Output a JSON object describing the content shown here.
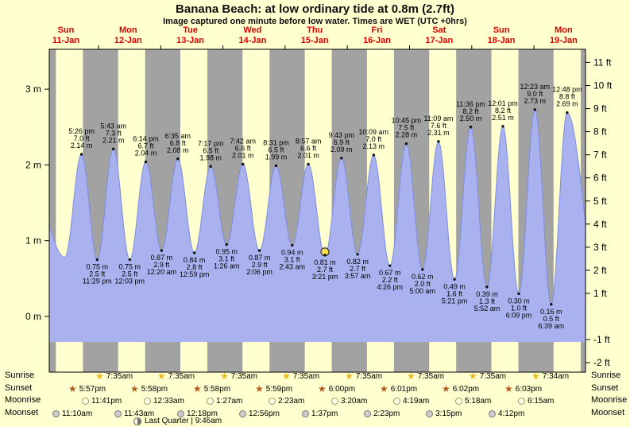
{
  "page": {
    "title": "Banana Beach: at low  ordinary tide at 0.8m (2.7ft)",
    "subtitle": "Image captured one minute before low water. Times are WET (UTC +0hrs)"
  },
  "colors": {
    "background": "#ffffcf",
    "day_band": "#ffffcf",
    "night_band": "#a2a2a2",
    "tide_fill": "#a9b2ef",
    "tide_stroke": "#7d8ce4",
    "day_label": "#dd0000",
    "current_marker": "#ffe14d",
    "sunrise_star": "#e8b81f",
    "sunset_star": "#b35a1f",
    "moonrise_fill": "#ffffe9",
    "moonrise_border": "#9a9a66",
    "moonset_fill": "#cccccc",
    "moonset_border": "#7a7a7a"
  },
  "chart_data": {
    "type": "area",
    "title": "Banana Beach: at low  ordinary tide at 0.8m (2.7ft)",
    "subtitle": "Image captured one minute before low water. Times are WET (UTC +0hrs)",
    "ylim_m": [
      -0.75,
      3.55
    ],
    "yticks_m": [
      0,
      1,
      2,
      3
    ],
    "ytick_suffix_left": " m",
    "yticks_ft": [
      -2,
      -1,
      1,
      2,
      3,
      4,
      5,
      6,
      7,
      8,
      9,
      10,
      11
    ],
    "ytick_suffix_right": " ft",
    "days": [
      {
        "name": "Sun",
        "date": "11-Jan"
      },
      {
        "name": "Mon",
        "date": "12-Jan"
      },
      {
        "name": "Tue",
        "date": "13-Jan"
      },
      {
        "name": "Wed",
        "date": "14-Jan"
      },
      {
        "name": "Thu",
        "date": "15-Jan"
      },
      {
        "name": "Fri",
        "date": "16-Jan"
      },
      {
        "name": "Sat",
        "date": "17-Jan"
      },
      {
        "name": "Sun",
        "date": "18-Jan"
      },
      {
        "name": "Mon",
        "date": "19-Jan"
      }
    ],
    "tides": [
      {
        "type": "high",
        "t": 17.43,
        "m": 2.14,
        "m_label": "2.14 m",
        "ft_label": "7.0 ft",
        "time": "5:26 pm"
      },
      {
        "type": "low",
        "t": 23.48,
        "m": 0.75,
        "m_label": "0.75 m",
        "ft_label": "2.5 ft",
        "time": "11:29 pm"
      },
      {
        "type": "high",
        "t": 29.72,
        "m": 2.21,
        "m_label": "2.21 m",
        "ft_label": "7.3 ft",
        "time": "5:43 am"
      },
      {
        "type": "low",
        "t": 36.05,
        "m": 0.75,
        "m_label": "0.75 m",
        "ft_label": "2.5 ft",
        "time": "12:03 pm"
      },
      {
        "type": "high",
        "t": 42.23,
        "m": 2.04,
        "m_label": "2.04 m",
        "ft_label": "6.7 ft",
        "time": "6:14 pm"
      },
      {
        "type": "low",
        "t": 48.33,
        "m": 0.87,
        "m_label": "0.87 m",
        "ft_label": "2.9 ft",
        "time": "12:20 am"
      },
      {
        "type": "high",
        "t": 54.58,
        "m": 2.08,
        "m_label": "2.08 m",
        "ft_label": "6.8 ft",
        "time": "6:35 am"
      },
      {
        "type": "low",
        "t": 60.98,
        "m": 0.84,
        "m_label": "0.84 m",
        "ft_label": "2.8 ft",
        "time": "12:59 pm"
      },
      {
        "type": "high",
        "t": 67.28,
        "m": 1.98,
        "m_label": "1.98 m",
        "ft_label": "6.5 ft",
        "time": "7:17 pm"
      },
      {
        "type": "low",
        "t": 73.43,
        "m": 0.95,
        "m_label": "0.95 m",
        "ft_label": "3.1 ft",
        "time": "1:26 am"
      },
      {
        "type": "high",
        "t": 79.7,
        "m": 2.01,
        "m_label": "2.01 m",
        "ft_label": "6.6 ft",
        "time": "7:42 am"
      },
      {
        "type": "low",
        "t": 86.1,
        "m": 0.87,
        "m_label": "0.87 m",
        "ft_label": "2.9 ft",
        "time": "2:06 pm"
      },
      {
        "type": "high",
        "t": 92.52,
        "m": 1.99,
        "m_label": "1.99 m",
        "ft_label": "6.5 ft",
        "time": "8:31 pm"
      },
      {
        "type": "low",
        "t": 98.72,
        "m": 0.94,
        "m_label": "0.94 m",
        "ft_label": "3.1 ft",
        "time": "2:43 am"
      },
      {
        "type": "high",
        "t": 104.95,
        "m": 2.01,
        "m_label": "2.01 m",
        "ft_label": "6.6 ft",
        "time": "8:57 am"
      },
      {
        "type": "low",
        "t": 111.35,
        "m": 0.81,
        "m_label": "0.81 m",
        "ft_label": "2.7 ft",
        "time": "3:21 pm",
        "current": true
      },
      {
        "type": "high",
        "t": 117.72,
        "m": 2.09,
        "m_label": "2.09 m",
        "ft_label": "6.9 ft",
        "time": "9:43 pm"
      },
      {
        "type": "low",
        "t": 123.95,
        "m": 0.82,
        "m_label": "0.82 m",
        "ft_label": "2.7 ft",
        "time": "3:57 am"
      },
      {
        "type": "high",
        "t": 130.15,
        "m": 2.13,
        "m_label": "2.13 m",
        "ft_label": "7.0 ft",
        "time": "10:09 am"
      },
      {
        "type": "low",
        "t": 136.43,
        "m": 0.67,
        "m_label": "0.67 m",
        "ft_label": "2.2 ft",
        "time": "4:26 pm"
      },
      {
        "type": "high",
        "t": 142.75,
        "m": 2.28,
        "m_label": "2.28 m",
        "ft_label": "7.5 ft",
        "time": "10:45 pm"
      },
      {
        "type": "low",
        "t": 149.0,
        "m": 0.62,
        "m_label": "0.62 m",
        "ft_label": "2.0 ft",
        "time": "5:00 am"
      },
      {
        "type": "high",
        "t": 155.15,
        "m": 2.31,
        "m_label": "2.31 m",
        "ft_label": "7.6 ft",
        "time": "11:09 am"
      },
      {
        "type": "low",
        "t": 161.35,
        "m": 0.49,
        "m_label": "0.49 m",
        "ft_label": "1.6 ft",
        "time": "5:21 pm"
      },
      {
        "type": "high",
        "t": 167.6,
        "m": 2.5,
        "m_label": "2.50 m",
        "ft_label": "8.2 ft",
        "time": "11:36 pm"
      },
      {
        "type": "low",
        "t": 173.87,
        "m": 0.39,
        "m_label": "0.39 m",
        "ft_label": "1.3 ft",
        "time": "5:52 am"
      },
      {
        "type": "high",
        "t": 180.02,
        "m": 2.51,
        "m_label": "2.51 m",
        "ft_label": "8.2 ft",
        "time": "12:01 pm"
      },
      {
        "type": "low",
        "t": 186.15,
        "m": 0.3,
        "m_label": "0.30 m",
        "ft_label": "1.0 ft",
        "time": "6:09 pm"
      },
      {
        "type": "high",
        "t": 192.38,
        "m": 2.73,
        "m_label": "2.73 m",
        "ft_label": "9.0 ft",
        "time": "12:23 am"
      },
      {
        "type": "low",
        "t": 198.65,
        "m": 0.16,
        "m_label": "0.16 m",
        "ft_label": "0.5 ft",
        "time": "6:39 am"
      },
      {
        "type": "high",
        "t": 204.8,
        "m": 2.69,
        "m_label": "2.69 m",
        "ft_label": "8.8 ft",
        "time": "12:48 pm"
      }
    ]
  },
  "astro": {
    "rows": [
      {
        "key": "sunrise",
        "label": "Sunrise",
        "icon": "sunrise-star-icon",
        "times": [
          "7:35am",
          "7:35am",
          "7:35am",
          "7:35am",
          "7:35am",
          "7:35am",
          "7:35am",
          "7:34am"
        ]
      },
      {
        "key": "sunset",
        "label": "Sunset",
        "icon": "sunset-star-icon",
        "times": [
          "5:57pm",
          "5:58pm",
          "5:58pm",
          "5:59pm",
          "6:00pm",
          "6:01pm",
          "6:02pm",
          "6:03pm"
        ]
      },
      {
        "key": "moonrise",
        "label": "Moonrise",
        "icon": "moonrise-moon-icon",
        "times": [
          "11:41pm",
          "12:33am",
          "1:27am",
          "2:23am",
          "3:20am",
          "4:19am",
          "5:18am",
          "6:15am"
        ]
      },
      {
        "key": "moonset",
        "label": "Moonset",
        "icon": "moonset-moon-icon",
        "times": [
          "11:10am",
          "11:43am",
          "12:18pm",
          "12:56pm",
          "1:37pm",
          "2:23pm",
          "3:15pm",
          "4:12pm"
        ]
      }
    ],
    "moon_phase": "Last Quarter | 9:46am"
  }
}
